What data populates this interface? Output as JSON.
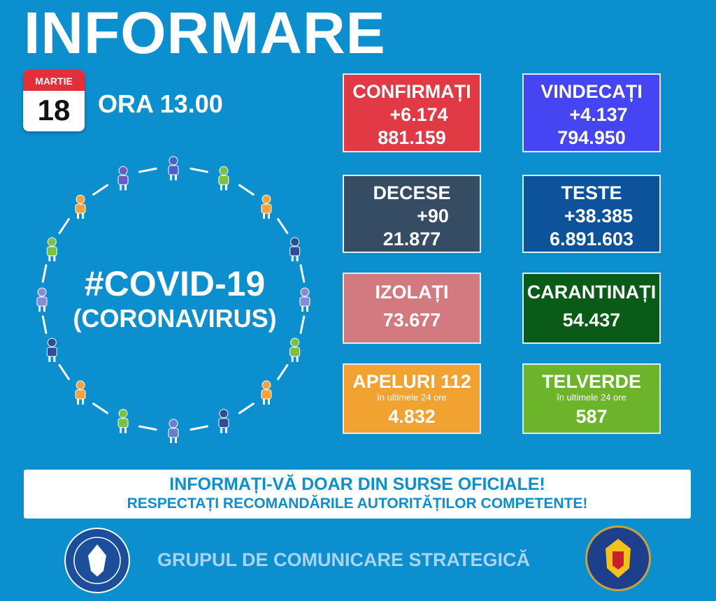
{
  "title": "INFORMARE",
  "calendar": {
    "month": "MARTIE",
    "day": "18"
  },
  "time": "ORA 13.00",
  "covid": {
    "line1": "#COVID-19",
    "line2": "(CORONAVIRUS)"
  },
  "stats": {
    "confirmati": {
      "label": "CONFIRMAȚI",
      "change": "+6.174",
      "total": "881.159",
      "color": "#e23a45"
    },
    "vindecati": {
      "label": "VINDECAȚI",
      "change": "+4.137",
      "total": "794.950",
      "color": "#4545f3"
    },
    "decese": {
      "label": "DECESE",
      "change": "+90",
      "total": "21.877",
      "color": "#354c62"
    },
    "teste": {
      "label": "TESTE",
      "change": "+38.385",
      "total": "6.891.603",
      "color": "#0c539b"
    },
    "izolati": {
      "label": "IZOLAȚI",
      "total": "73.677",
      "color": "#d37a80"
    },
    "carantinati": {
      "label": "CARANTINAȚI",
      "total": "54.437",
      "color": "#0a5a18"
    },
    "apeluri": {
      "label": "APELURI 112",
      "sub": "în ultimele 24 ore",
      "total": "4.832",
      "color": "#f1a231"
    },
    "telverde": {
      "label": "TELVERDE",
      "sub": "în ultimele 24 ore",
      "total": "587",
      "color": "#6cb52b"
    }
  },
  "banner": {
    "line1": "INFORMAȚI-VĂ DOAR DIN SURSE OFICIALE!",
    "line2": "RESPECTAȚI RECOMANDĂRILE AUTORITĂȚILOR COMPETENTE!"
  },
  "footer": "GRUPUL DE COMUNICARE STRATEGICĂ",
  "logos": {
    "left": "GUVERNUL ROMÂNIEI",
    "right": "DEPARTAMENTUL PENTRU SITUAȚII DE URGENȚĂ M.A.I."
  }
}
